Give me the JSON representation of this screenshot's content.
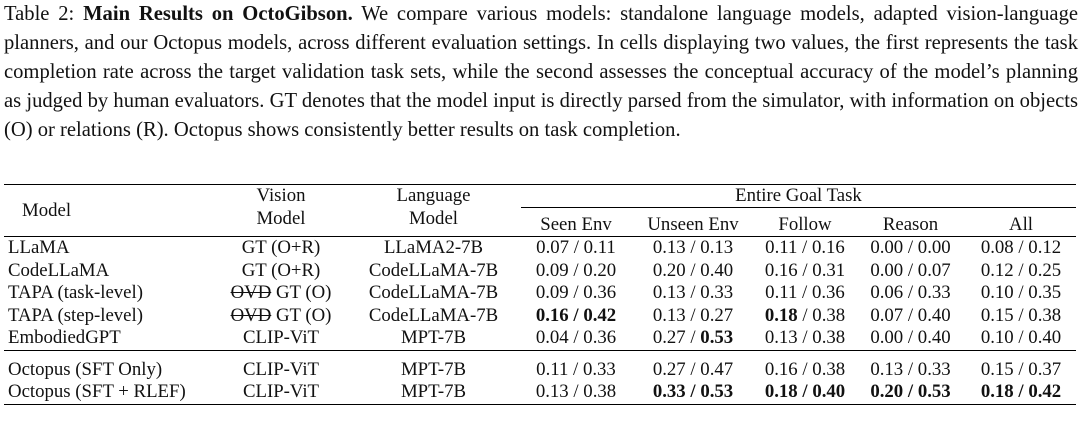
{
  "caption": {
    "label": "Table 2:",
    "title": "Main Results on OctoGibson.",
    "text": "We compare various models: standalone language models, adapted vision-language planners, and our Octopus models, across different evaluation settings. In cells displaying two values, the first represents the task completion rate across the target validation task sets, while the second assesses the conceptual accuracy of the model’s planning as judged by human evaluators. GT denotes that the model input is directly parsed from the simulator, with information on objects (O) or relations (R). Octopus shows consistently better results on task completion."
  },
  "table": {
    "headers": {
      "model": "Model",
      "vision_l1": "Vision",
      "vision_l2": "Model",
      "language_l1": "Language",
      "language_l2": "Model",
      "group": "Entire Goal Task",
      "sub": [
        "Seen Env",
        "Unseen Env",
        "Follow",
        "Reason",
        "All"
      ]
    },
    "rows": [
      {
        "model": "LLaMA",
        "vision_prefix": "",
        "vision": "GT (O+R)",
        "language": "LLaMA2-7B",
        "cells": [
          [
            "0.07",
            "0.11"
          ],
          [
            "0.13",
            "0.13"
          ],
          [
            "0.11",
            "0.16"
          ],
          [
            "0.00",
            "0.00"
          ],
          [
            "0.08",
            "0.12"
          ]
        ]
      },
      {
        "model": "CodeLLaMA",
        "vision_prefix": "",
        "vision": "GT (O+R)",
        "language": "CodeLLaMA-7B",
        "cells": [
          [
            "0.09",
            "0.20"
          ],
          [
            "0.20",
            "0.40"
          ],
          [
            "0.16",
            "0.31"
          ],
          [
            "0.00",
            "0.07"
          ],
          [
            "0.12",
            "0.25"
          ]
        ]
      },
      {
        "model": "TAPA (task-level)",
        "vision_prefix": "OVD",
        "vision": "GT (O)",
        "language": "CodeLLaMA-7B",
        "cells": [
          [
            "0.09",
            "0.36"
          ],
          [
            "0.13",
            "0.33"
          ],
          [
            "0.11",
            "0.36"
          ],
          [
            "0.06",
            "0.33"
          ],
          [
            "0.10",
            "0.35"
          ]
        ]
      },
      {
        "model": "TAPA (step-level)",
        "vision_prefix": "OVD",
        "vision": "GT (O)",
        "language": "CodeLLaMA-7B",
        "cells": [
          [
            "0.16",
            "0.42"
          ],
          [
            "0.13",
            "0.27"
          ],
          [
            "0.18",
            "0.38"
          ],
          [
            "0.07",
            "0.40"
          ],
          [
            "0.15",
            "0.38"
          ]
        ]
      },
      {
        "model": "EmbodiedGPT",
        "vision_prefix": "",
        "vision": "CLIP-ViT",
        "language": "MPT-7B",
        "cells": [
          [
            "0.04",
            "0.36"
          ],
          [
            "0.27",
            "0.53"
          ],
          [
            "0.13",
            "0.38"
          ],
          [
            "0.00",
            "0.40"
          ],
          [
            "0.10",
            "0.40"
          ]
        ]
      },
      {
        "model": "Octopus (SFT Only)",
        "vision_prefix": "",
        "vision": "CLIP-ViT",
        "language": "MPT-7B",
        "cells": [
          [
            "0.11",
            "0.33"
          ],
          [
            "0.27",
            "0.47"
          ],
          [
            "0.16",
            "0.38"
          ],
          [
            "0.13",
            "0.33"
          ],
          [
            "0.15",
            "0.37"
          ]
        ]
      },
      {
        "model": "Octopus (SFT + RLEF)",
        "vision_prefix": "",
        "vision": "CLIP-ViT",
        "language": "MPT-7B",
        "cells": [
          [
            "0.13",
            "0.38"
          ],
          [
            "0.33",
            "0.53"
          ],
          [
            "0.18",
            "0.40"
          ],
          [
            "0.20",
            "0.53"
          ],
          [
            "0.18",
            "0.42"
          ]
        ]
      }
    ]
  }
}
